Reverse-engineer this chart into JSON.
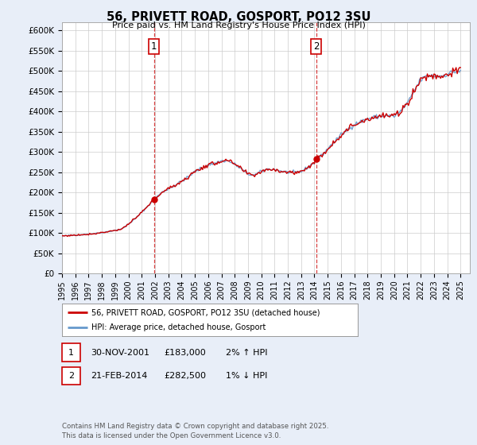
{
  "title": "56, PRIVETT ROAD, GOSPORT, PO12 3SU",
  "subtitle": "Price paid vs. HM Land Registry's House Price Index (HPI)",
  "ylabel_ticks": [
    "£0",
    "£50K",
    "£100K",
    "£150K",
    "£200K",
    "£250K",
    "£300K",
    "£350K",
    "£400K",
    "£450K",
    "£500K",
    "£550K",
    "£600K"
  ],
  "ytick_values": [
    0,
    50000,
    100000,
    150000,
    200000,
    250000,
    300000,
    350000,
    400000,
    450000,
    500000,
    550000,
    600000
  ],
  "ylim": [
    0,
    620000
  ],
  "xlim_start": 1995.3,
  "xlim_end": 2025.7,
  "xticks": [
    1995,
    1996,
    1997,
    1998,
    1999,
    2000,
    2001,
    2002,
    2003,
    2004,
    2005,
    2006,
    2007,
    2008,
    2009,
    2010,
    2011,
    2012,
    2013,
    2014,
    2015,
    2016,
    2017,
    2018,
    2019,
    2020,
    2021,
    2022,
    2023,
    2024,
    2025
  ],
  "legend_line1": "56, PRIVETT ROAD, GOSPORT, PO12 3SU (detached house)",
  "legend_line2": "HPI: Average price, detached house, Gosport",
  "line1_color": "#cc0000",
  "line2_color": "#6699cc",
  "marker1_date": 2001.92,
  "marker2_date": 2014.13,
  "marker1_price": 183000,
  "marker2_price": 282500,
  "annotation1": "1",
  "annotation2": "2",
  "footnote": "Contains HM Land Registry data © Crown copyright and database right 2025.\nThis data is licensed under the Open Government Licence v3.0.",
  "table_row1": [
    "1",
    "30-NOV-2001",
    "£183,000",
    "2% ↑ HPI"
  ],
  "table_row2": [
    "2",
    "21-FEB-2014",
    "£282,500",
    "1% ↓ HPI"
  ],
  "bg_color": "#e8eef8",
  "plot_bg": "#ffffff"
}
